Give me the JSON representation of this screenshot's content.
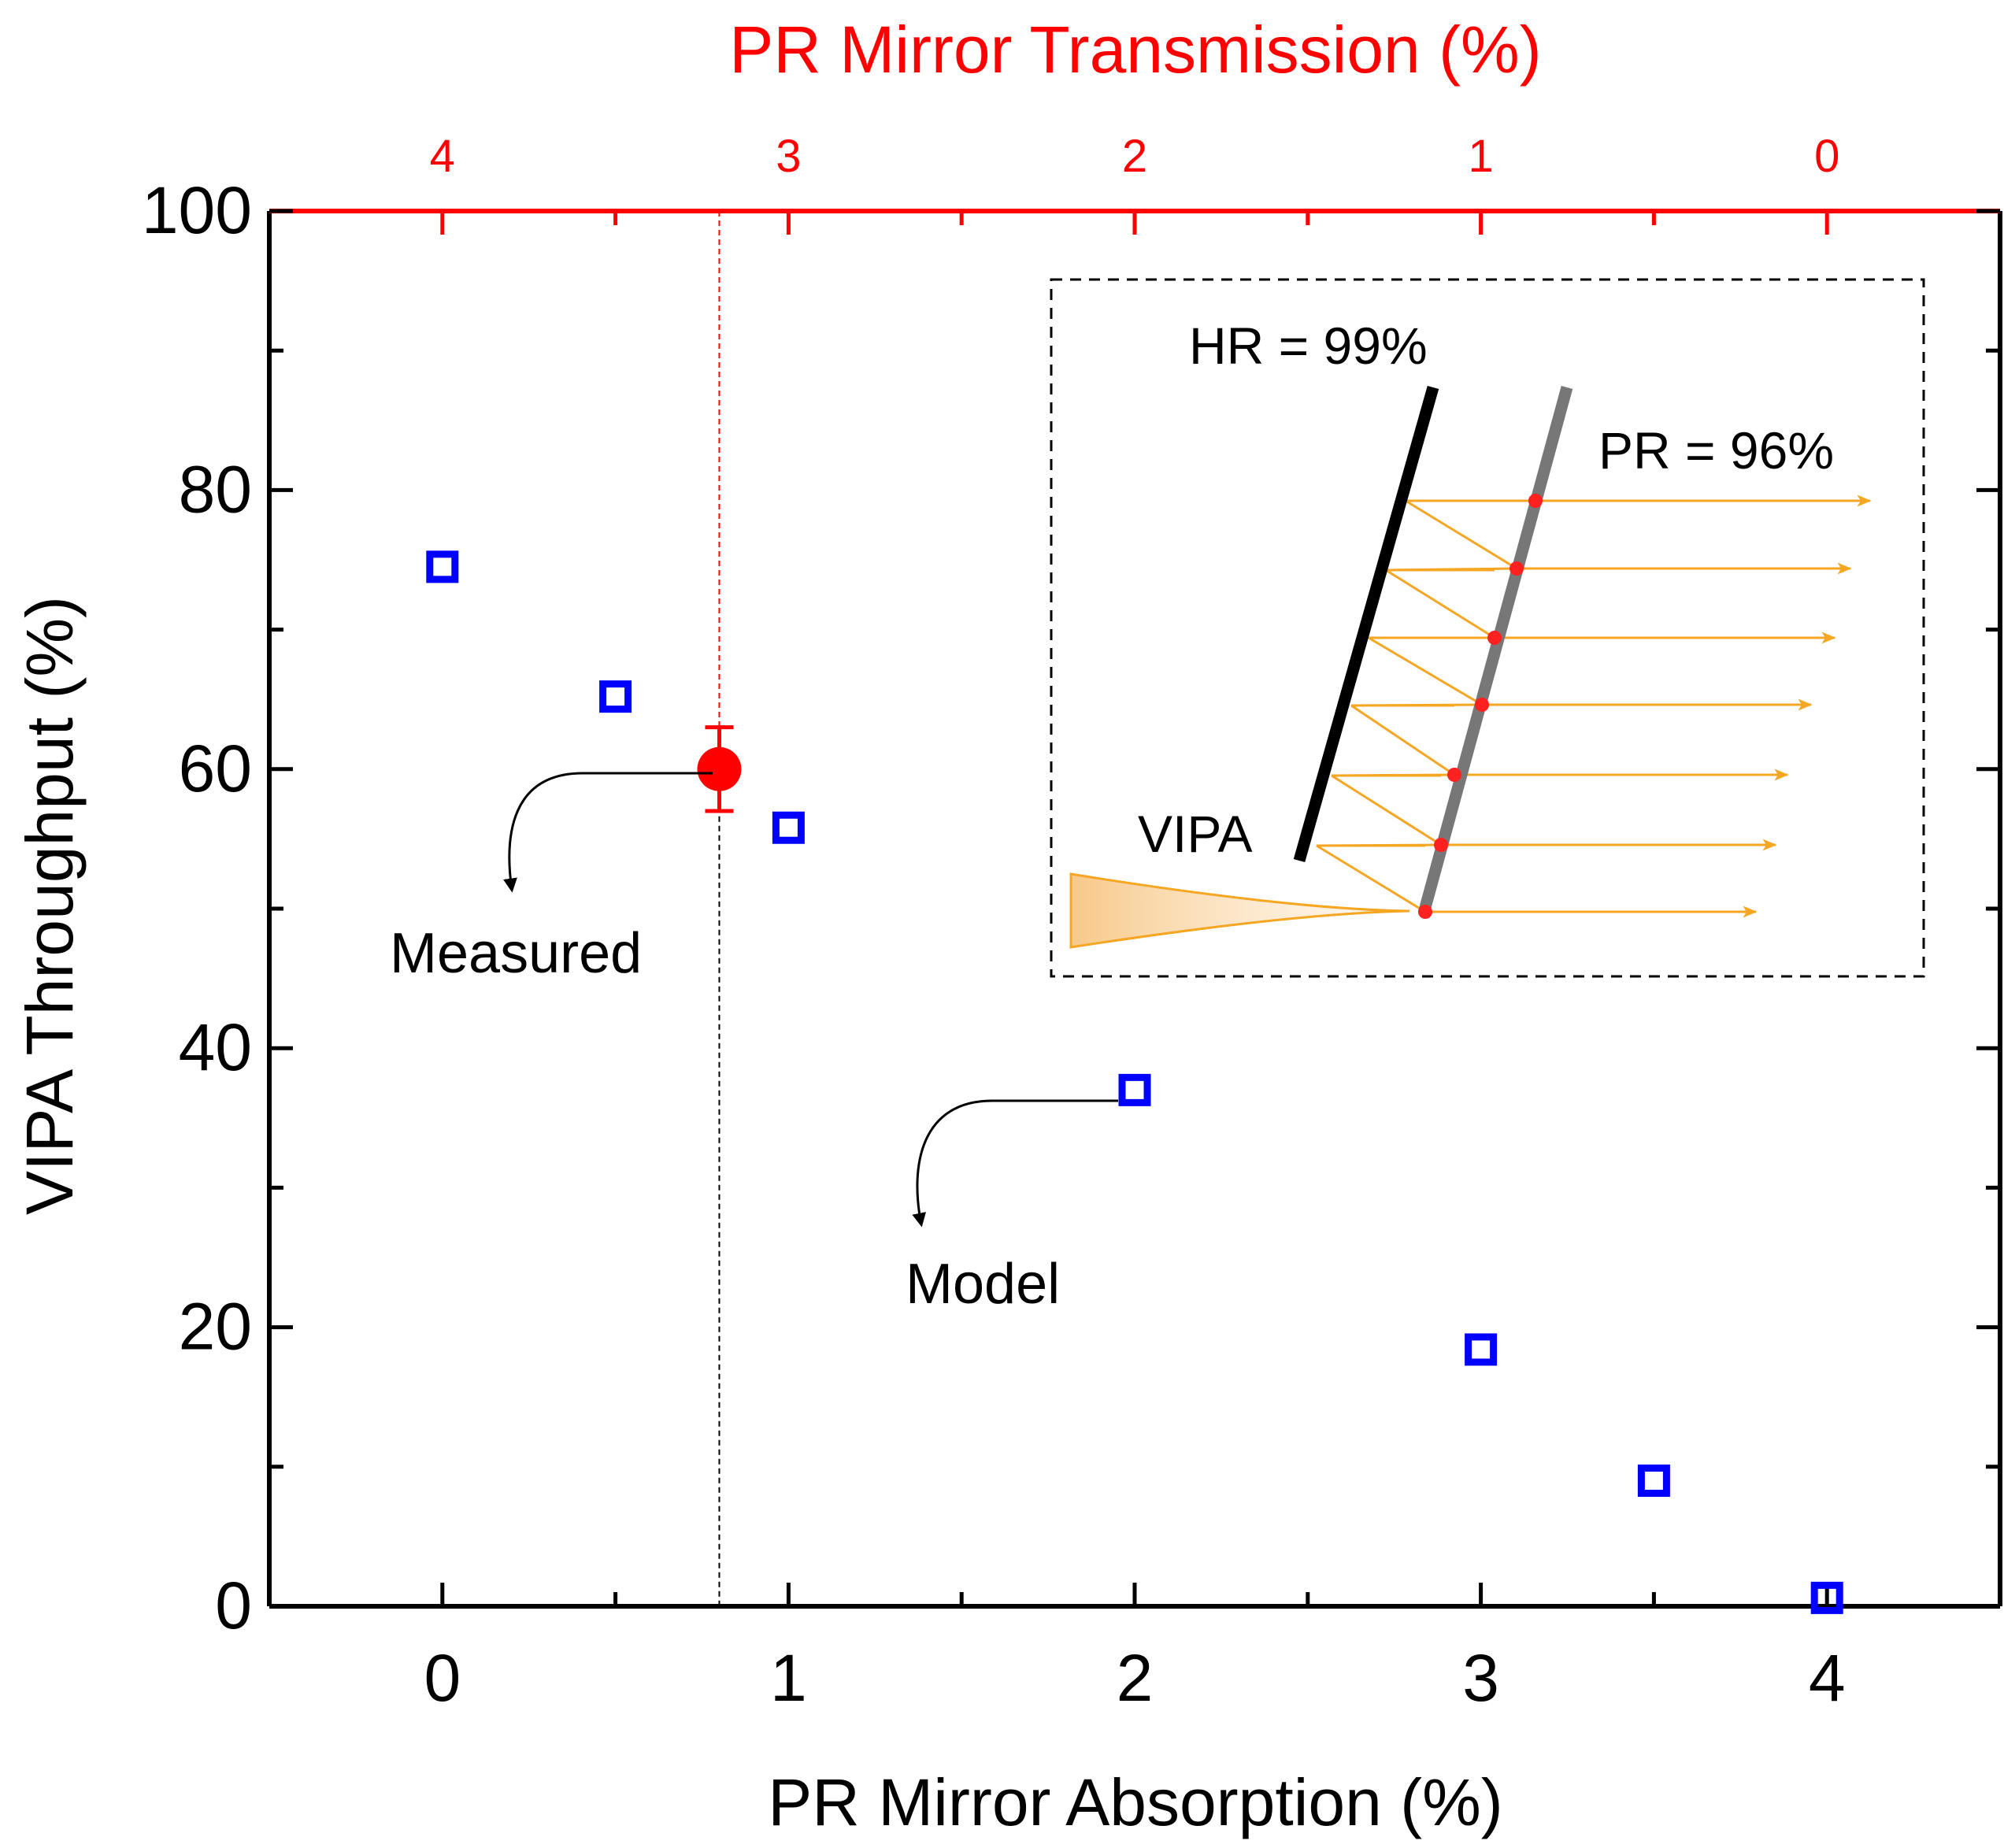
{
  "chart_data": {
    "type": "scatter",
    "title": "",
    "xlabel": "PR Mirror Absorption (%)",
    "ylabel": "VIPA Throughput (%)",
    "x2label": "PR Mirror Transmission (%)",
    "xlim": [
      -0.5,
      4.5
    ],
    "ylim": [
      0,
      100
    ],
    "xticks": [
      "0",
      "1",
      "2",
      "3",
      "4"
    ],
    "yticks": [
      "0",
      "20",
      "40",
      "60",
      "80",
      "100"
    ],
    "x2ticks": [
      "4",
      "3",
      "2",
      "1",
      "0"
    ],
    "grid": false,
    "series": [
      {
        "name": "Model",
        "marker": "open-square",
        "color": "#0000ff",
        "x": [
          0,
          0.5,
          1,
          2,
          3,
          3.5,
          4
        ],
        "y": [
          74.5,
          65.2,
          55.8,
          37.0,
          18.4,
          9.0,
          0.6
        ]
      },
      {
        "name": "Measured",
        "marker": "filled-circle",
        "color": "#ff0000",
        "x": [
          0.8
        ],
        "y": [
          60
        ],
        "yerr": [
          3
        ]
      }
    ],
    "reference_line_x": 0.8,
    "annotations": {
      "measured": "Measured",
      "model": "Model"
    },
    "inset": {
      "hr_label": "HR = 99%",
      "pr_label": "PR = 96%",
      "vipa_label": "VIPA"
    },
    "colors": {
      "model": "#0000ff",
      "measured": "#ff0000",
      "top_axis": "#ff0000",
      "beam": "#f5a623",
      "hr_mirror": "#000000",
      "pr_mirror": "#777777"
    }
  }
}
